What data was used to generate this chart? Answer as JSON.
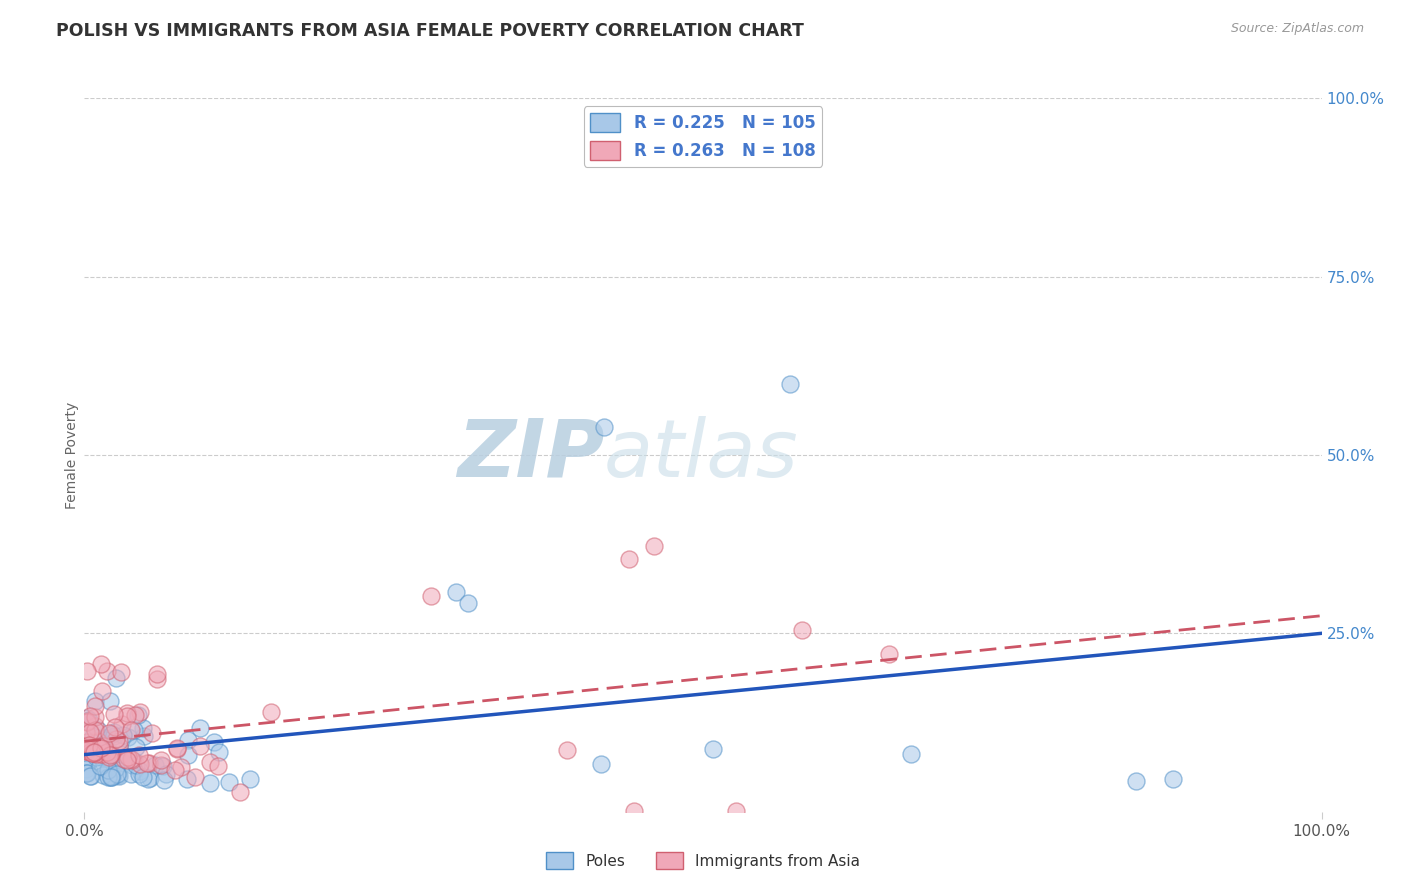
{
  "title": "POLISH VS IMMIGRANTS FROM ASIA FEMALE POVERTY CORRELATION CHART",
  "source": "Source: ZipAtlas.com",
  "ylabel": "Female Poverty",
  "R_poles": 0.225,
  "N_poles": 105,
  "R_asia": 0.263,
  "N_asia": 108,
  "bg_color": "#ffffff",
  "poles_face_color": "#a8c8e8",
  "poles_edge_color": "#5090c8",
  "asia_face_color": "#f0a8b8",
  "asia_edge_color": "#d06070",
  "poles_line_color": "#2255bb",
  "asia_line_color": "#cc5566",
  "legend_label_color": "#4477cc",
  "title_color": "#333333",
  "source_color": "#999999",
  "ylabel_color": "#666666",
  "ytick_color": "#4488cc",
  "xtick_color": "#555555",
  "grid_color": "#cccccc",
  "watermark_zip_color": "#b8cfe0",
  "watermark_atlas_color": "#c8dde8"
}
